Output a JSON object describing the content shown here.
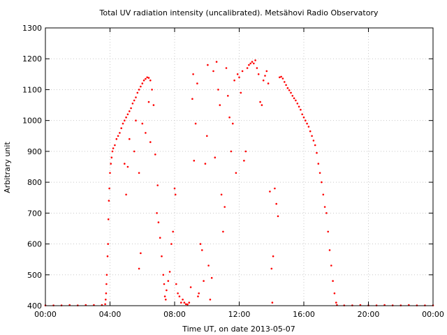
{
  "chart_data": {
    "type": "scatter",
    "title": "Total UV radiation intensity (uncalibrated). Metsähovi Radio Observatory",
    "xlabel": "Time UT, on date 2013-05-07",
    "ylabel": "Arbitrary unit",
    "x_unit": "hours UT",
    "xlim": [
      0,
      24
    ],
    "ylim": [
      400,
      1300
    ],
    "x_ticks": [
      {
        "value": 0,
        "label": "00:00"
      },
      {
        "value": 4,
        "label": "04:00"
      },
      {
        "value": 8,
        "label": "08:00"
      },
      {
        "value": 12,
        "label": "12:00"
      },
      {
        "value": 16,
        "label": "16:00"
      },
      {
        "value": 20,
        "label": "20:00"
      },
      {
        "value": 24,
        "label": "00:00"
      }
    ],
    "y_ticks": [
      {
        "value": 400,
        "label": "400"
      },
      {
        "value": 500,
        "label": "500"
      },
      {
        "value": 600,
        "label": "600"
      },
      {
        "value": 700,
        "label": "700"
      },
      {
        "value": 800,
        "label": "800"
      },
      {
        "value": 900,
        "label": "900"
      },
      {
        "value": 1000,
        "label": "1000"
      },
      {
        "value": 1100,
        "label": "1100"
      },
      {
        "value": 1200,
        "label": "1200"
      },
      {
        "value": 1300,
        "label": "1300"
      }
    ],
    "grid": true,
    "colors": {
      "points": "#ff0000",
      "grid": "#c8c8c8",
      "frame": "#000000"
    },
    "series": [
      {
        "points": [
          [
            0.0,
            401
          ],
          [
            0.5,
            401
          ],
          [
            1.0,
            401
          ],
          [
            1.5,
            402
          ],
          [
            2.0,
            401
          ],
          [
            2.5,
            402
          ],
          [
            3.0,
            402
          ],
          [
            3.5,
            402
          ],
          [
            3.7,
            405
          ],
          [
            3.73,
            420
          ],
          [
            3.76,
            440
          ],
          [
            3.78,
            470
          ],
          [
            3.8,
            500
          ],
          [
            3.85,
            560
          ],
          [
            3.88,
            600
          ],
          [
            3.9,
            680
          ],
          [
            3.93,
            740
          ],
          [
            3.96,
            780
          ],
          [
            4.0,
            830
          ],
          [
            4.05,
            860
          ],
          [
            4.1,
            880
          ],
          [
            4.15,
            900
          ],
          [
            4.2,
            910
          ],
          [
            4.3,
            920
          ],
          [
            4.4,
            940
          ],
          [
            4.5,
            950
          ],
          [
            4.6,
            960
          ],
          [
            4.7,
            975
          ],
          [
            4.8,
            990
          ],
          [
            4.9,
            1000
          ],
          [
            5.0,
            1010
          ],
          [
            5.1,
            1020
          ],
          [
            5.2,
            1030
          ],
          [
            5.3,
            1040
          ],
          [
            5.4,
            1055
          ],
          [
            5.5,
            1065
          ],
          [
            5.6,
            1075
          ],
          [
            5.7,
            1090
          ],
          [
            5.8,
            1100
          ],
          [
            5.9,
            1110
          ],
          [
            6.0,
            1120
          ],
          [
            6.1,
            1130
          ],
          [
            6.2,
            1135
          ],
          [
            6.3,
            1140
          ],
          [
            6.4,
            1138
          ],
          [
            6.5,
            1130
          ],
          [
            4.9,
            860
          ],
          [
            5.0,
            760
          ],
          [
            5.1,
            850
          ],
          [
            5.2,
            940
          ],
          [
            5.5,
            900
          ],
          [
            5.6,
            1000
          ],
          [
            5.8,
            830
          ],
          [
            5.9,
            570
          ],
          [
            5.8,
            520
          ],
          [
            6.0,
            990
          ],
          [
            6.2,
            960
          ],
          [
            6.4,
            1060
          ],
          [
            6.5,
            930
          ],
          [
            6.6,
            1100
          ],
          [
            6.7,
            1050
          ],
          [
            6.8,
            890
          ],
          [
            6.9,
            700
          ],
          [
            6.95,
            790
          ],
          [
            7.0,
            670
          ],
          [
            7.1,
            620
          ],
          [
            7.2,
            560
          ],
          [
            7.3,
            500
          ],
          [
            7.35,
            470
          ],
          [
            7.4,
            430
          ],
          [
            7.45,
            420
          ],
          [
            7.5,
            450
          ],
          [
            7.6,
            480
          ],
          [
            7.7,
            510
          ],
          [
            7.8,
            600
          ],
          [
            7.9,
            640
          ],
          [
            8.0,
            780
          ],
          [
            8.05,
            760
          ],
          [
            8.1,
            470
          ],
          [
            8.2,
            440
          ],
          [
            8.3,
            430
          ],
          [
            8.4,
            410
          ],
          [
            8.5,
            420
          ],
          [
            8.6,
            410
          ],
          [
            8.7,
            405
          ],
          [
            8.8,
            404
          ],
          [
            8.9,
            410
          ],
          [
            9.0,
            460
          ],
          [
            9.1,
            1070
          ],
          [
            9.15,
            1150
          ],
          [
            9.2,
            870
          ],
          [
            9.3,
            990
          ],
          [
            9.4,
            1120
          ],
          [
            9.45,
            430
          ],
          [
            9.5,
            440
          ],
          [
            9.6,
            600
          ],
          [
            9.7,
            580
          ],
          [
            9.8,
            480
          ],
          [
            9.9,
            860
          ],
          [
            10.0,
            950
          ],
          [
            10.05,
            1180
          ],
          [
            10.1,
            530
          ],
          [
            10.2,
            420
          ],
          [
            10.3,
            490
          ],
          [
            10.4,
            1160
          ],
          [
            10.5,
            880
          ],
          [
            10.6,
            1190
          ],
          [
            10.7,
            1100
          ],
          [
            10.8,
            1050
          ],
          [
            10.9,
            760
          ],
          [
            11.0,
            640
          ],
          [
            11.1,
            720
          ],
          [
            11.2,
            1170
          ],
          [
            11.3,
            1080
          ],
          [
            11.4,
            1010
          ],
          [
            11.5,
            900
          ],
          [
            11.6,
            990
          ],
          [
            11.7,
            1130
          ],
          [
            11.8,
            830
          ],
          [
            11.9,
            1150
          ],
          [
            12.0,
            1140
          ],
          [
            12.1,
            1090
          ],
          [
            12.2,
            1160
          ],
          [
            12.3,
            870
          ],
          [
            12.4,
            900
          ],
          [
            12.5,
            1170
          ],
          [
            12.6,
            1180
          ],
          [
            12.7,
            1185
          ],
          [
            12.8,
            1190
          ],
          [
            12.9,
            1185
          ],
          [
            13.0,
            1195
          ],
          [
            13.1,
            1170
          ],
          [
            13.2,
            1150
          ],
          [
            13.3,
            1060
          ],
          [
            13.4,
            1050
          ],
          [
            13.5,
            1130
          ],
          [
            13.6,
            1145
          ],
          [
            13.7,
            1160
          ],
          [
            13.8,
            1120
          ],
          [
            13.9,
            770
          ],
          [
            14.0,
            520
          ],
          [
            14.05,
            410
          ],
          [
            14.1,
            560
          ],
          [
            14.2,
            780
          ],
          [
            14.3,
            730
          ],
          [
            14.4,
            690
          ],
          [
            14.5,
            1140
          ],
          [
            14.6,
            1142
          ],
          [
            14.7,
            1136
          ],
          [
            14.8,
            1125
          ],
          [
            14.9,
            1115
          ],
          [
            15.0,
            1105
          ],
          [
            15.1,
            1098
          ],
          [
            15.2,
            1090
          ],
          [
            15.3,
            1080
          ],
          [
            15.4,
            1072
          ],
          [
            15.5,
            1065
          ],
          [
            15.6,
            1055
          ],
          [
            15.7,
            1045
          ],
          [
            15.8,
            1035
          ],
          [
            15.9,
            1020
          ],
          [
            16.0,
            1010
          ],
          [
            16.1,
            1000
          ],
          [
            16.2,
            990
          ],
          [
            16.3,
            980
          ],
          [
            16.4,
            965
          ],
          [
            16.5,
            950
          ],
          [
            16.6,
            935
          ],
          [
            16.7,
            920
          ],
          [
            16.8,
            895
          ],
          [
            16.9,
            860
          ],
          [
            17.0,
            830
          ],
          [
            17.1,
            800
          ],
          [
            17.2,
            760
          ],
          [
            17.3,
            720
          ],
          [
            17.4,
            700
          ],
          [
            17.5,
            640
          ],
          [
            17.6,
            580
          ],
          [
            17.7,
            530
          ],
          [
            17.8,
            480
          ],
          [
            17.9,
            440
          ],
          [
            18.0,
            410
          ],
          [
            18.05,
            402
          ],
          [
            18.5,
            401
          ],
          [
            19.0,
            401
          ],
          [
            19.5,
            402
          ],
          [
            20.0,
            401
          ],
          [
            20.5,
            401
          ],
          [
            21.0,
            402
          ],
          [
            21.5,
            401
          ],
          [
            22.0,
            401
          ],
          [
            22.5,
            402
          ],
          [
            23.0,
            401
          ],
          [
            23.5,
            401
          ],
          [
            24.0,
            401
          ]
        ]
      }
    ]
  }
}
